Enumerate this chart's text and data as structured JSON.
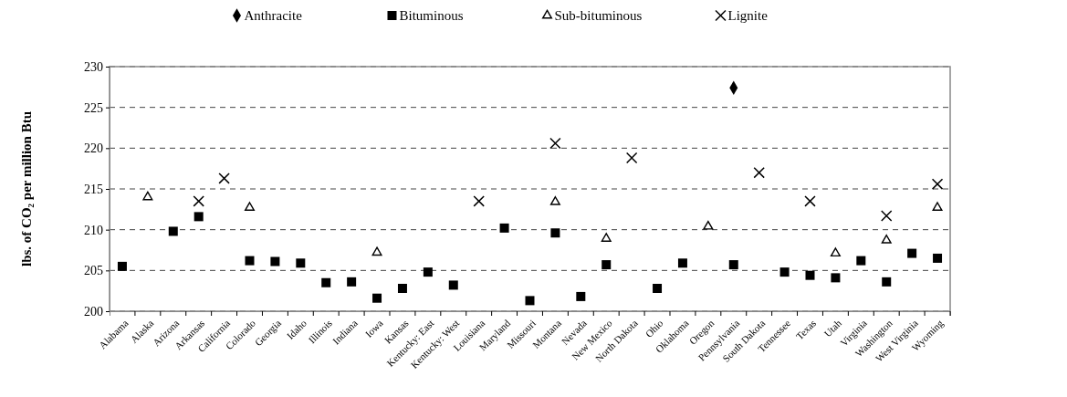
{
  "chart_data": {
    "type": "scatter",
    "ylabel": "lbs. of CO₂ per million Btu",
    "categories": [
      "Alabama",
      "Alaska",
      "Arizona",
      "Arkansas",
      "California",
      "Colorado",
      "Georgia",
      "Idaho",
      "Illinois",
      "Indiana",
      "Iowa",
      "Kansas",
      "Kentucky: East",
      "Kentucky: West",
      "Louisiana",
      "Maryland",
      "Missouri",
      "Montana",
      "Nevada",
      "New Mexico",
      "North Dakota",
      "Ohio",
      "Oklahoma",
      "Oregon",
      "Pennsylvania",
      "South Dakota",
      "Tennessee",
      "Texas",
      "Utah",
      "Virginia",
      "Washington",
      "West Virginia",
      "Wyoming"
    ],
    "series": [
      {
        "name": "Anthracite",
        "color": "#000000",
        "marker": "diamond",
        "values": [
          null,
          null,
          null,
          null,
          null,
          null,
          null,
          null,
          null,
          null,
          null,
          null,
          null,
          null,
          null,
          null,
          null,
          null,
          null,
          null,
          null,
          null,
          null,
          null,
          227.4,
          null,
          null,
          null,
          null,
          null,
          null,
          null,
          null
        ]
      },
      {
        "name": "Bituminous",
        "color": "#000000",
        "marker": "square",
        "values": [
          205.5,
          null,
          209.8,
          211.6,
          null,
          206.2,
          206.1,
          205.9,
          203.5,
          203.6,
          201.6,
          202.8,
          204.8,
          203.2,
          null,
          210.2,
          201.3,
          209.6,
          201.8,
          205.7,
          null,
          202.8,
          205.9,
          null,
          205.7,
          null,
          204.8,
          204.4,
          204.1,
          206.2,
          203.6,
          207.1,
          206.5
        ]
      },
      {
        "name": "Sub-bituminous",
        "color": "#000000",
        "marker": "triangle",
        "values": [
          null,
          214.0,
          null,
          null,
          null,
          212.7,
          null,
          null,
          null,
          null,
          207.2,
          null,
          null,
          null,
          null,
          null,
          null,
          213.4,
          null,
          208.9,
          null,
          null,
          null,
          210.4,
          null,
          null,
          null,
          null,
          207.1,
          null,
          208.7,
          null,
          212.7
        ]
      },
      {
        "name": "Lignite",
        "color": "#000000",
        "marker": "cross",
        "values": [
          null,
          null,
          null,
          213.5,
          216.3,
          null,
          null,
          null,
          null,
          null,
          null,
          null,
          null,
          null,
          213.5,
          null,
          null,
          220.6,
          null,
          null,
          218.8,
          null,
          null,
          null,
          null,
          217.0,
          null,
          213.5,
          null,
          null,
          211.7,
          null,
          215.6
        ]
      }
    ],
    "ylim": [
      200,
      230
    ],
    "yticks": [
      200,
      205,
      210,
      215,
      220,
      225,
      230
    ],
    "grid": "y",
    "legend": "top"
  }
}
